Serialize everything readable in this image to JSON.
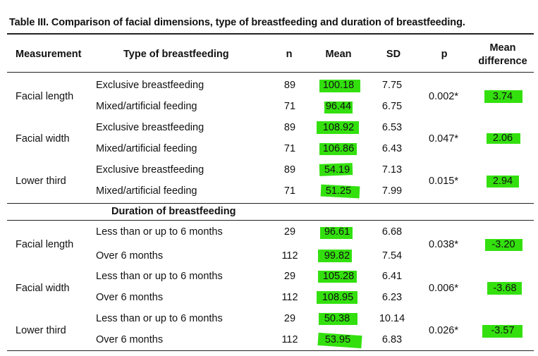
{
  "title": "Table III. Comparison of facial dimensions, type of breastfeeding and duration of breastfeeding.",
  "headers": {
    "measurement": "Measurement",
    "type": "Type of breastfeeding",
    "n": "n",
    "mean": "Mean",
    "sd": "SD",
    "p": "p",
    "mean_diff_line1": "Mean",
    "mean_diff_line2": "difference"
  },
  "section_type": {
    "groups": [
      {
        "measurement": "Facial length",
        "p": "0.002*",
        "diff": "3.74",
        "rows": [
          {
            "type": "Exclusive breastfeeding",
            "n": "89",
            "mean": "100.18",
            "sd": "7.75"
          },
          {
            "type": "Mixed/artificial feeding",
            "n": "71",
            "mean": "96.44",
            "sd": "6.75"
          }
        ]
      },
      {
        "measurement": "Facial width",
        "p": "0.047*",
        "diff": "2.06",
        "rows": [
          {
            "type": "Exclusive breastfeeding",
            "n": "89",
            "mean": "108.92",
            "sd": "6.53"
          },
          {
            "type": "Mixed/artificial feeding",
            "n": "71",
            "mean": "106.86",
            "sd": "6.43"
          }
        ]
      },
      {
        "measurement": "Lower third",
        "p": "0.015*",
        "diff": "2.94",
        "rows": [
          {
            "type": "Exclusive breastfeeding",
            "n": "89",
            "mean": "54.19",
            "sd": "7.13"
          },
          {
            "type": "Mixed/artificial feeding",
            "n": "71",
            "mean": "51.25",
            "sd": "7.99"
          }
        ]
      }
    ]
  },
  "section_duration": {
    "heading": "Duration of breastfeeding",
    "groups": [
      {
        "measurement": "Facial length",
        "p": "0.038*",
        "diff": "-3.20",
        "rows": [
          {
            "type": "Less than or up to 6 months",
            "n": "29",
            "mean": "96.61",
            "sd": "6.68"
          },
          {
            "type": "Over 6 months",
            "n": "112",
            "mean": "99.82",
            "sd": "7.54"
          }
        ]
      },
      {
        "measurement": "Facial width",
        "p": "0.006*",
        "diff": "-3.68",
        "rows": [
          {
            "type": "Less than or up to 6 months",
            "n": "29",
            "mean": "105.28",
            "sd": "6.41"
          },
          {
            "type": "Over 6 months",
            "n": "112",
            "mean": "108.95",
            "sd": "6.23"
          }
        ]
      },
      {
        "measurement": "Lower third",
        "p": "0.026*",
        "diff": "-3.57",
        "rows": [
          {
            "type": "Less than or up to 6 months",
            "n": "29",
            "mean": "50.38",
            "sd": "10.14"
          },
          {
            "type": "Over 6 months",
            "n": "112",
            "mean": "53.95",
            "sd": "6.83"
          }
        ]
      }
    ]
  },
  "highlight_color": "#33e00e"
}
